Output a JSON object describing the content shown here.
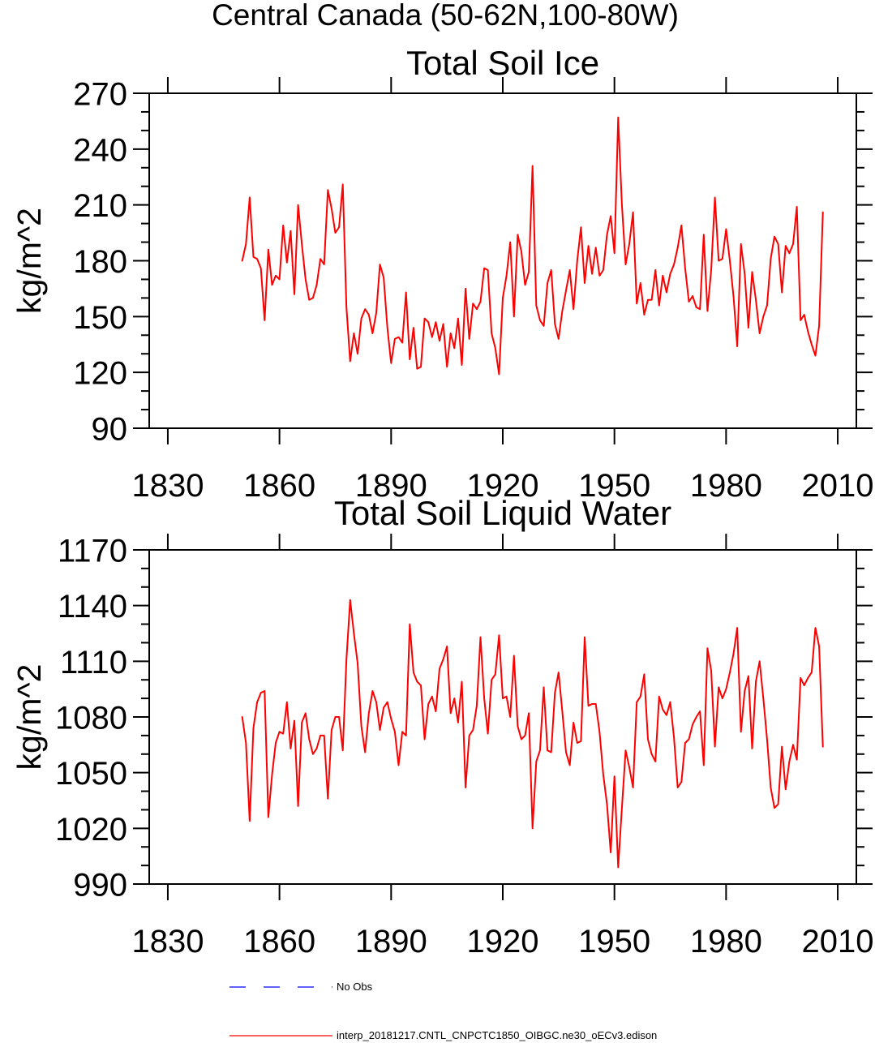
{
  "figure_title": "Central Canada (50-62N,100-80W)",
  "chart_data": [
    {
      "type": "line",
      "title": "Total Soil Ice",
      "ylabel": "kg/m^2",
      "xlim": [
        1825,
        2015
      ],
      "ylim": [
        90,
        270
      ],
      "x_ticks": [
        1830,
        1860,
        1890,
        1920,
        1950,
        1980,
        2010
      ],
      "y_ticks": [
        90,
        120,
        150,
        180,
        210,
        240,
        270
      ],
      "y_minor_step": 10,
      "x": [
        1850,
        1851,
        1852,
        1853,
        1854,
        1855,
        1856,
        1857,
        1858,
        1859,
        1860,
        1861,
        1862,
        1863,
        1864,
        1865,
        1866,
        1867,
        1868,
        1869,
        1870,
        1871,
        1872,
        1873,
        1874,
        1875,
        1876,
        1877,
        1878,
        1879,
        1880,
        1881,
        1882,
        1883,
        1884,
        1885,
        1886,
        1887,
        1888,
        1889,
        1890,
        1891,
        1892,
        1893,
        1894,
        1895,
        1896,
        1897,
        1898,
        1899,
        1900,
        1901,
        1902,
        1903,
        1904,
        1905,
        1906,
        1907,
        1908,
        1909,
        1910,
        1911,
        1912,
        1913,
        1914,
        1915,
        1916,
        1917,
        1918,
        1919,
        1920,
        1921,
        1922,
        1923,
        1924,
        1925,
        1926,
        1927,
        1928,
        1929,
        1930,
        1931,
        1932,
        1933,
        1934,
        1935,
        1936,
        1937,
        1938,
        1939,
        1940,
        1941,
        1942,
        1943,
        1944,
        1945,
        1946,
        1947,
        1948,
        1949,
        1950,
        1951,
        1952,
        1953,
        1954,
        1955,
        1956,
        1957,
        1958,
        1959,
        1960,
        1961,
        1962,
        1963,
        1964,
        1965,
        1966,
        1967,
        1968,
        1969,
        1970,
        1971,
        1972,
        1973,
        1974,
        1975,
        1976,
        1977,
        1978,
        1979,
        1980,
        1981,
        1982,
        1983,
        1984,
        1985,
        1986,
        1987,
        1988,
        1989,
        1990,
        1991,
        1992,
        1993,
        1994,
        1995,
        1996,
        1997,
        1998,
        1999,
        2000,
        2001,
        2002,
        2003,
        2004,
        2005,
        2006
      ],
      "series": [
        {
          "legend_index": 1,
          "color": "#ff0000",
          "values": [
            180,
            189,
            214,
            182,
            181,
            176,
            148,
            186,
            167,
            172,
            170,
            199,
            179,
            196,
            162,
            210,
            189,
            170,
            159,
            160,
            167,
            181,
            178,
            218,
            208,
            195,
            198,
            221,
            155,
            126,
            141,
            130,
            149,
            154,
            151,
            141,
            152,
            178,
            171,
            144,
            125,
            138,
            139,
            136,
            163,
            127,
            144,
            122,
            123,
            149,
            147,
            139,
            147,
            137,
            146,
            123,
            141,
            133,
            149,
            124,
            165,
            138,
            157,
            154,
            158,
            176,
            175,
            141,
            133,
            119,
            160,
            172,
            190,
            150,
            194,
            185,
            167,
            174,
            231,
            156,
            148,
            145,
            168,
            175,
            146,
            138,
            153,
            164,
            175,
            154,
            180,
            198,
            168,
            188,
            173,
            187,
            172,
            175,
            194,
            204,
            184,
            257,
            210,
            178,
            189,
            206,
            157,
            168,
            151,
            159,
            159,
            175,
            156,
            172,
            163,
            173,
            178,
            187,
            199,
            176,
            158,
            161,
            155,
            154,
            194,
            153,
            175,
            214,
            180,
            181,
            197,
            180,
            161,
            134,
            189,
            173,
            144,
            174,
            159,
            141,
            150,
            156,
            181,
            193,
            189,
            163,
            188,
            184,
            189,
            209,
            148,
            151,
            142,
            135,
            129,
            145,
            206
          ]
        }
      ]
    },
    {
      "type": "line",
      "title": "Total Soil Liquid Water",
      "ylabel": "kg/m^2",
      "xlim": [
        1825,
        2015
      ],
      "ylim": [
        990,
        1170
      ],
      "x_ticks": [
        1830,
        1860,
        1890,
        1920,
        1950,
        1980,
        2010
      ],
      "y_ticks": [
        990,
        1020,
        1050,
        1080,
        1110,
        1140,
        1170
      ],
      "y_minor_step": 10,
      "x": [
        1850,
        1851,
        1852,
        1853,
        1854,
        1855,
        1856,
        1857,
        1858,
        1859,
        1860,
        1861,
        1862,
        1863,
        1864,
        1865,
        1866,
        1867,
        1868,
        1869,
        1870,
        1871,
        1872,
        1873,
        1874,
        1875,
        1876,
        1877,
        1878,
        1879,
        1880,
        1881,
        1882,
        1883,
        1884,
        1885,
        1886,
        1887,
        1888,
        1889,
        1890,
        1891,
        1892,
        1893,
        1894,
        1895,
        1896,
        1897,
        1898,
        1899,
        1900,
        1901,
        1902,
        1903,
        1904,
        1905,
        1906,
        1907,
        1908,
        1909,
        1910,
        1911,
        1912,
        1913,
        1914,
        1915,
        1916,
        1917,
        1918,
        1919,
        1920,
        1921,
        1922,
        1923,
        1924,
        1925,
        1926,
        1927,
        1928,
        1929,
        1930,
        1931,
        1932,
        1933,
        1934,
        1935,
        1936,
        1937,
        1938,
        1939,
        1940,
        1941,
        1942,
        1943,
        1944,
        1945,
        1946,
        1947,
        1948,
        1949,
        1950,
        1951,
        1952,
        1953,
        1954,
        1955,
        1956,
        1957,
        1958,
        1959,
        1960,
        1961,
        1962,
        1963,
        1964,
        1965,
        1966,
        1967,
        1968,
        1969,
        1970,
        1971,
        1972,
        1973,
        1974,
        1975,
        1976,
        1977,
        1978,
        1979,
        1980,
        1981,
        1982,
        1983,
        1984,
        1985,
        1986,
        1987,
        1988,
        1989,
        1990,
        1991,
        1992,
        1993,
        1994,
        1995,
        1996,
        1997,
        1998,
        1999,
        2000,
        2001,
        2002,
        2003,
        2004,
        2005,
        2006
      ],
      "series": [
        {
          "legend_index": 1,
          "color": "#ff0000",
          "values": [
            1080,
            1066,
            1024,
            1074,
            1088,
            1093,
            1094,
            1026,
            1049,
            1066,
            1072,
            1071,
            1088,
            1063,
            1078,
            1032,
            1077,
            1082,
            1068,
            1060,
            1063,
            1070,
            1070,
            1036,
            1073,
            1080,
            1080,
            1062,
            1111,
            1143,
            1125,
            1109,
            1075,
            1061,
            1082,
            1094,
            1088,
            1073,
            1085,
            1088,
            1079,
            1072,
            1054,
            1072,
            1070,
            1130,
            1104,
            1099,
            1097,
            1068,
            1087,
            1091,
            1083,
            1106,
            1111,
            1118,
            1082,
            1090,
            1077,
            1099,
            1042,
            1070,
            1073,
            1086,
            1123,
            1090,
            1071,
            1100,
            1103,
            1124,
            1090,
            1091,
            1080,
            1113,
            1075,
            1068,
            1070,
            1082,
            1020,
            1056,
            1062,
            1096,
            1062,
            1061,
            1093,
            1104,
            1083,
            1061,
            1054,
            1077,
            1066,
            1067,
            1123,
            1086,
            1087,
            1087,
            1072,
            1049,
            1033,
            1007,
            1048,
            999,
            1031,
            1062,
            1053,
            1042,
            1088,
            1091,
            1103,
            1068,
            1060,
            1056,
            1091,
            1084,
            1081,
            1088,
            1069,
            1042,
            1045,
            1066,
            1068,
            1076,
            1080,
            1083,
            1054,
            1117,
            1105,
            1064,
            1096,
            1090,
            1095,
            1104,
            1114,
            1128,
            1072,
            1094,
            1102,
            1063,
            1099,
            1110,
            1090,
            1068,
            1042,
            1031,
            1033,
            1064,
            1041,
            1056,
            1065,
            1057,
            1101,
            1097,
            1101,
            1104,
            1128,
            1118,
            1064
          ]
        }
      ]
    }
  ],
  "legend": {
    "items": [
      {
        "label": "No Obs",
        "color": "#0000ff",
        "dashed": true
      },
      {
        "label": "interp_20181217.CNTL_CNPCTC1850_OIBGC.ne30_oECv3.edison",
        "color": "#ff0000",
        "dashed": false
      }
    ]
  }
}
